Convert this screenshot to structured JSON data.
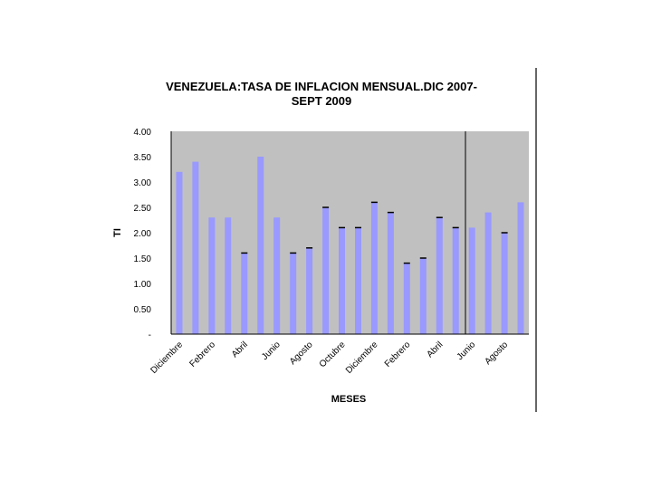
{
  "chart_data": {
    "type": "bar",
    "title_line1": "VENEZUELA:TASA DE INFLACION MENSUAL.DIC 2007-",
    "title_line2": "SEPT 2009",
    "xlabel": "MESES",
    "ylabel": "TI",
    "ylim": [
      0,
      4
    ],
    "y_ticks": [
      "-",
      "0.50",
      "1.00",
      "1.50",
      "2.00",
      "2.50",
      "3.00",
      "3.50",
      "4.00"
    ],
    "x_tick_labels": [
      "Diciembre",
      "Febrero",
      "Abril",
      "Junio",
      "Agosto",
      "Octubre",
      "Diciembre",
      "Febrero",
      "Abril",
      "Junio",
      "Agosto"
    ],
    "values": [
      3.2,
      3.4,
      2.3,
      2.3,
      1.6,
      3.5,
      2.3,
      1.6,
      1.7,
      2.5,
      2.1,
      2.1,
      2.6,
      2.4,
      1.4,
      1.5,
      2.3,
      2.1,
      2.1,
      2.4,
      2.0,
      2.6
    ],
    "outlined": [
      false,
      false,
      false,
      false,
      true,
      false,
      false,
      true,
      true,
      true,
      true,
      true,
      true,
      true,
      true,
      true,
      true,
      true,
      false,
      false,
      true,
      false
    ],
    "grid": false,
    "colors": {
      "plot_background": "#c0c0c0",
      "bar_fill": "#9999ff",
      "bar_outline": "#000000"
    }
  }
}
